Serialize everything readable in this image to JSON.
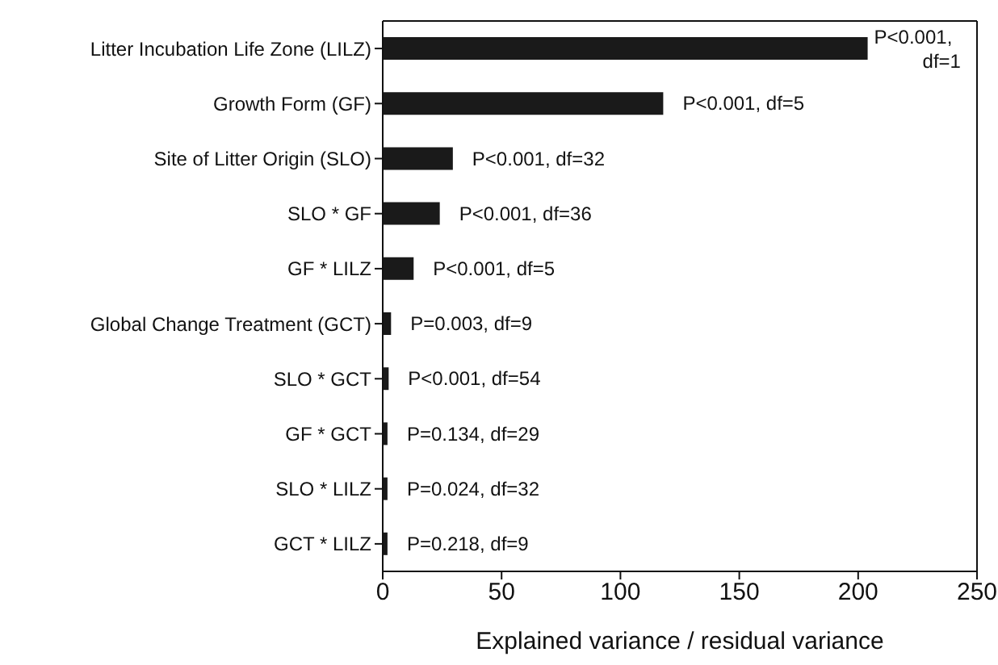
{
  "chart_data": {
    "type": "bar",
    "orientation": "horizontal",
    "categories": [
      "Litter Incubation Life Zone (LILZ)",
      "Growth Form (GF)",
      "Site of Litter Origin (SLO)",
      "SLO * GF",
      "GF * LILZ",
      "Global Change Treatment (GCT)",
      "SLO * GCT",
      "GF * GCT",
      "SLO * LILZ",
      "GCT * LILZ"
    ],
    "values": [
      204,
      118,
      29.5,
      24,
      13,
      3.5,
      2.5,
      2,
      2,
      2
    ],
    "color": "#1a1a1a",
    "xlim": [
      0,
      250
    ],
    "xticks": [
      0,
      50,
      100,
      150,
      200,
      250
    ],
    "xlabel": "Explained variance / residual variance",
    "annotations": [
      {
        "text": "P<0.001, df=1",
        "x": 204,
        "y": "Litter Incubation Life Zone (LILZ)"
      },
      {
        "text": "P<0.001, df=5",
        "x": 118,
        "y": "Growth Form (GF)"
      },
      {
        "text": "P<0.001, df=32",
        "x": 29.5,
        "y": "Site of Litter Origin (SLO)"
      },
      {
        "text": "P<0.001, df=36",
        "x": 24,
        "y": "SLO * GF"
      },
      {
        "text": "P<0.001, df=5",
        "x": 13,
        "y": "GF * LILZ"
      },
      {
        "text": "P=0.003, df=9",
        "x": 3.5,
        "y": "Global Change Treatment (GCT)"
      },
      {
        "text": "P<0.001, df=54",
        "x": 2.5,
        "y": "SLO * GCT"
      },
      {
        "text": "P=0.134, df=29",
        "x": 2,
        "y": "GF * GCT"
      },
      {
        "text": "P=0.024, df=32",
        "x": 2,
        "y": "SLO * LILZ"
      },
      {
        "text": "P=0.218, df=9",
        "x": 2,
        "y": "GCT * LILZ"
      }
    ],
    "grid": false,
    "legend": false
  }
}
